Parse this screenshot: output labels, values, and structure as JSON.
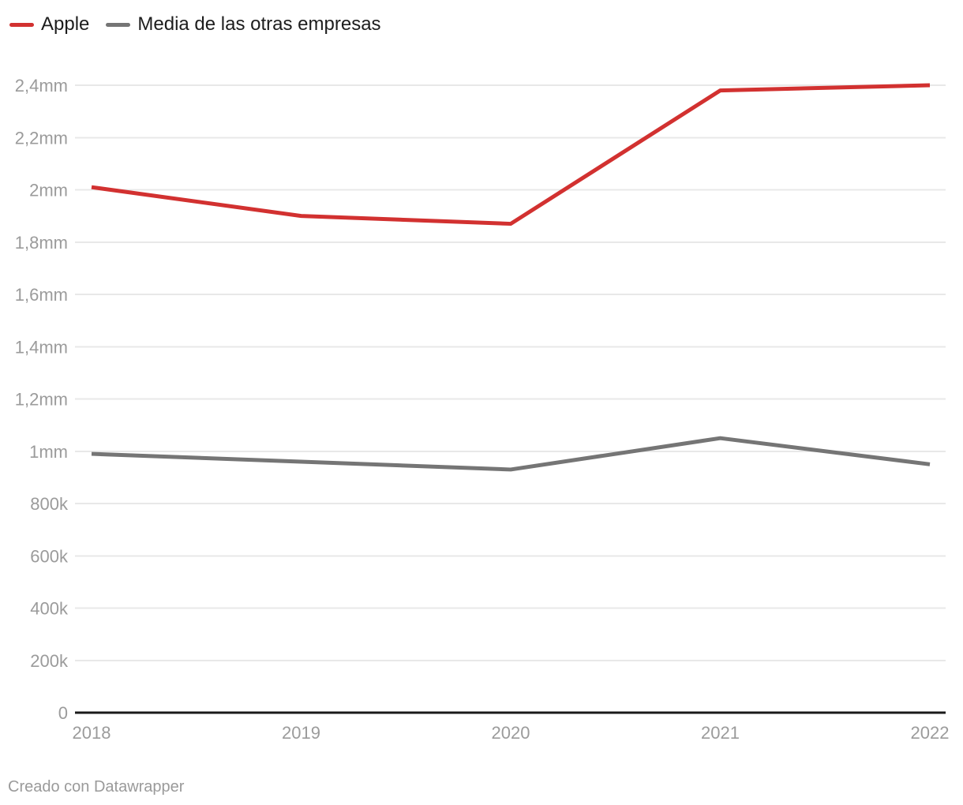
{
  "chart_data": {
    "type": "line",
    "title": "",
    "xlabel": "",
    "ylabel": "",
    "x": [
      2018,
      2019,
      2020,
      2021,
      2022
    ],
    "x_tick_labels": [
      "2018",
      "2019",
      "2020",
      "2021",
      "2022"
    ],
    "series": [
      {
        "name": "Apple",
        "color": "#d23130",
        "values": [
          2010000,
          1900000,
          1870000,
          2380000,
          2400000
        ]
      },
      {
        "name": "Media de las otras empresas",
        "color": "#757575",
        "values": [
          990000,
          960000,
          930000,
          1050000,
          950000
        ]
      }
    ],
    "y_ticks": [
      {
        "value": 0,
        "label": "0"
      },
      {
        "value": 200000,
        "label": "200k"
      },
      {
        "value": 400000,
        "label": "400k"
      },
      {
        "value": 600000,
        "label": "600k"
      },
      {
        "value": 800000,
        "label": "800k"
      },
      {
        "value": 1000000,
        "label": "1mm"
      },
      {
        "value": 1200000,
        "label": "1,2mm"
      },
      {
        "value": 1400000,
        "label": "1,4mm"
      },
      {
        "value": 1600000,
        "label": "1,6mm"
      },
      {
        "value": 1800000,
        "label": "1,8mm"
      },
      {
        "value": 2000000,
        "label": "2mm"
      },
      {
        "value": 2200000,
        "label": "2,2mm"
      },
      {
        "value": 2400000,
        "label": "2,4mm"
      }
    ],
    "ylim": [
      0,
      2400000
    ],
    "grid": true,
    "legend_position": "top-left"
  },
  "footer": {
    "credit": "Creado con Datawrapper"
  },
  "colors": {
    "background": "#ffffff",
    "grid_line": "#e8e8e8",
    "axis_line": "#1a1a1a",
    "tick_label": "#9b9b9b",
    "legend_text": "#1d1d1d",
    "footer_text": "#9a9a9a"
  }
}
